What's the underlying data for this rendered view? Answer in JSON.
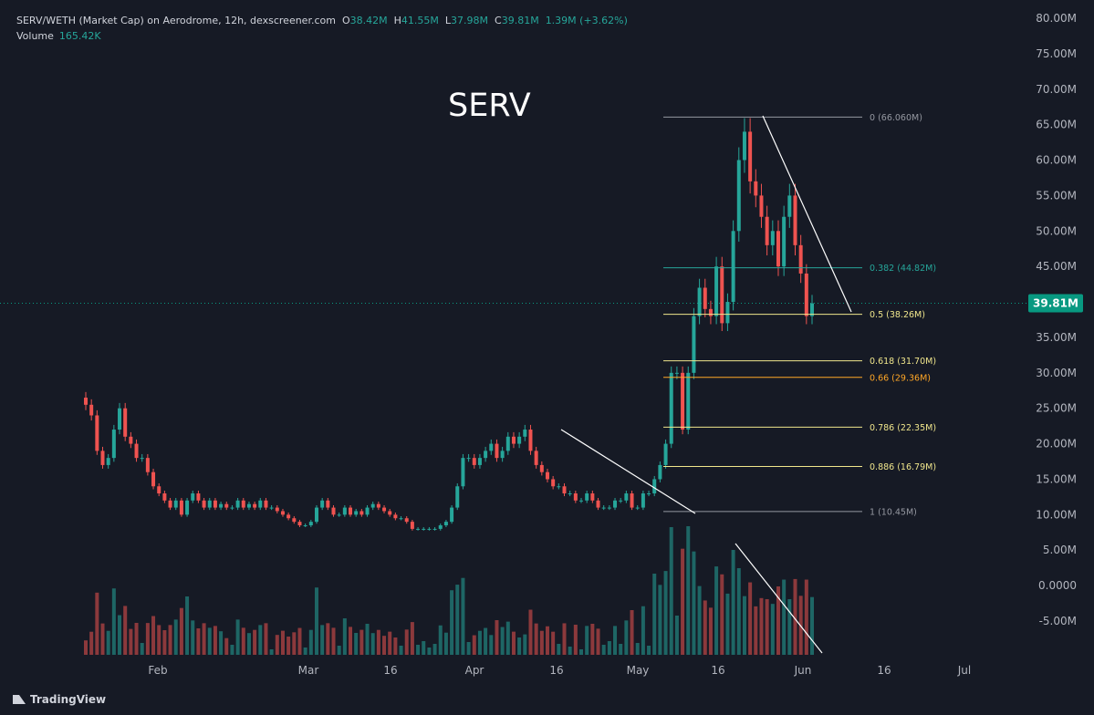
{
  "header": {
    "symbol_line": "SERV/WETH (Market Cap) on Aerodrome, 12h, dexscreener.com",
    "o_label": "O",
    "o_value": "38.42M",
    "h_label": "H",
    "h_value": "41.55M",
    "l_label": "L",
    "l_value": "37.98M",
    "c_label": "C",
    "c_value": "39.81M",
    "change": "1.39M (+3.62%)",
    "volume_label": "Volume",
    "volume_value": "165.42K"
  },
  "watermark": "SERV",
  "footer": {
    "brand": "TradingView"
  },
  "colors": {
    "up": "#26a69a",
    "down": "#ef5350",
    "bg": "#161a25",
    "text": "#b2b5be"
  },
  "chart_data": {
    "type": "candlestick",
    "y_axis_labels": [
      "80.00M",
      "75.00M",
      "70.00M",
      "65.00M",
      "60.00M",
      "55.00M",
      "50.00M",
      "45.00M",
      "40.00M",
      "35.00M",
      "30.00M",
      "25.00M",
      "20.00M",
      "15.00M",
      "10.00M",
      "5.00M",
      "0.0000",
      "-5.00M"
    ],
    "y_axis_values": [
      80,
      75,
      70,
      65,
      60,
      55,
      50,
      45,
      40,
      35,
      30,
      25,
      20,
      15,
      10,
      5,
      0,
      -5
    ],
    "x_axis_labels": [
      "Feb",
      "Mar",
      "16",
      "Apr",
      "16",
      "May",
      "16",
      "Jun",
      "16",
      "Jul"
    ],
    "last_price": "39.81M",
    "last_price_value": 39.81,
    "fib_levels": [
      {
        "label": "0 (66.060M)",
        "value": 66.06,
        "color": "#9598a1"
      },
      {
        "label": "0.382 (44.82M)",
        "value": 44.82,
        "color": "#26a69a"
      },
      {
        "label": "0.5 (38.26M)",
        "value": 38.26,
        "color": "#f0e68c"
      },
      {
        "label": "0.618 (31.70M)",
        "value": 31.7,
        "color": "#f0e68c"
      },
      {
        "label": "0.66 (29.36M)",
        "value": 29.36,
        "color": "#ffa726"
      },
      {
        "label": "0.786 (22.35M)",
        "value": 22.35,
        "color": "#f0e68c"
      },
      {
        "label": "0.886 (16.79M)",
        "value": 16.79,
        "color": "#f0e68c"
      },
      {
        "label": "1 (10.45M)",
        "value": 10.45,
        "color": "#9598a1"
      }
    ],
    "price_series_millions": [
      25.5,
      24,
      19,
      17,
      18,
      22,
      25,
      21,
      20,
      18,
      18,
      16,
      14,
      13,
      12,
      11,
      12,
      10,
      12,
      13,
      12,
      11,
      12,
      11,
      11.5,
      11,
      11,
      12,
      11,
      11.5,
      11,
      12,
      11,
      11,
      10.5,
      10,
      9.5,
      9,
      8.5,
      8.5,
      9,
      11,
      12,
      11,
      10,
      10,
      11,
      10,
      10.5,
      10,
      11,
      11.5,
      11,
      10.5,
      10,
      9.5,
      9.5,
      9,
      8,
      8,
      8,
      8,
      8,
      8.5,
      9,
      11,
      14,
      18,
      18,
      17,
      18,
      19,
      20,
      18,
      19,
      21,
      20,
      21,
      22,
      19,
      17,
      16,
      15,
      14,
      14,
      13,
      13,
      12,
      12,
      13,
      12,
      11,
      11,
      11,
      12,
      12,
      13,
      11,
      11,
      13,
      13,
      15,
      17,
      20,
      30,
      30,
      22,
      30,
      38,
      42,
      39,
      38,
      45,
      37,
      40,
      50,
      60,
      64,
      57,
      55,
      52,
      48,
      50,
      45,
      52,
      55,
      48,
      44,
      38,
      39.8
    ],
    "volume_note": "volume histogram in lower pane"
  }
}
